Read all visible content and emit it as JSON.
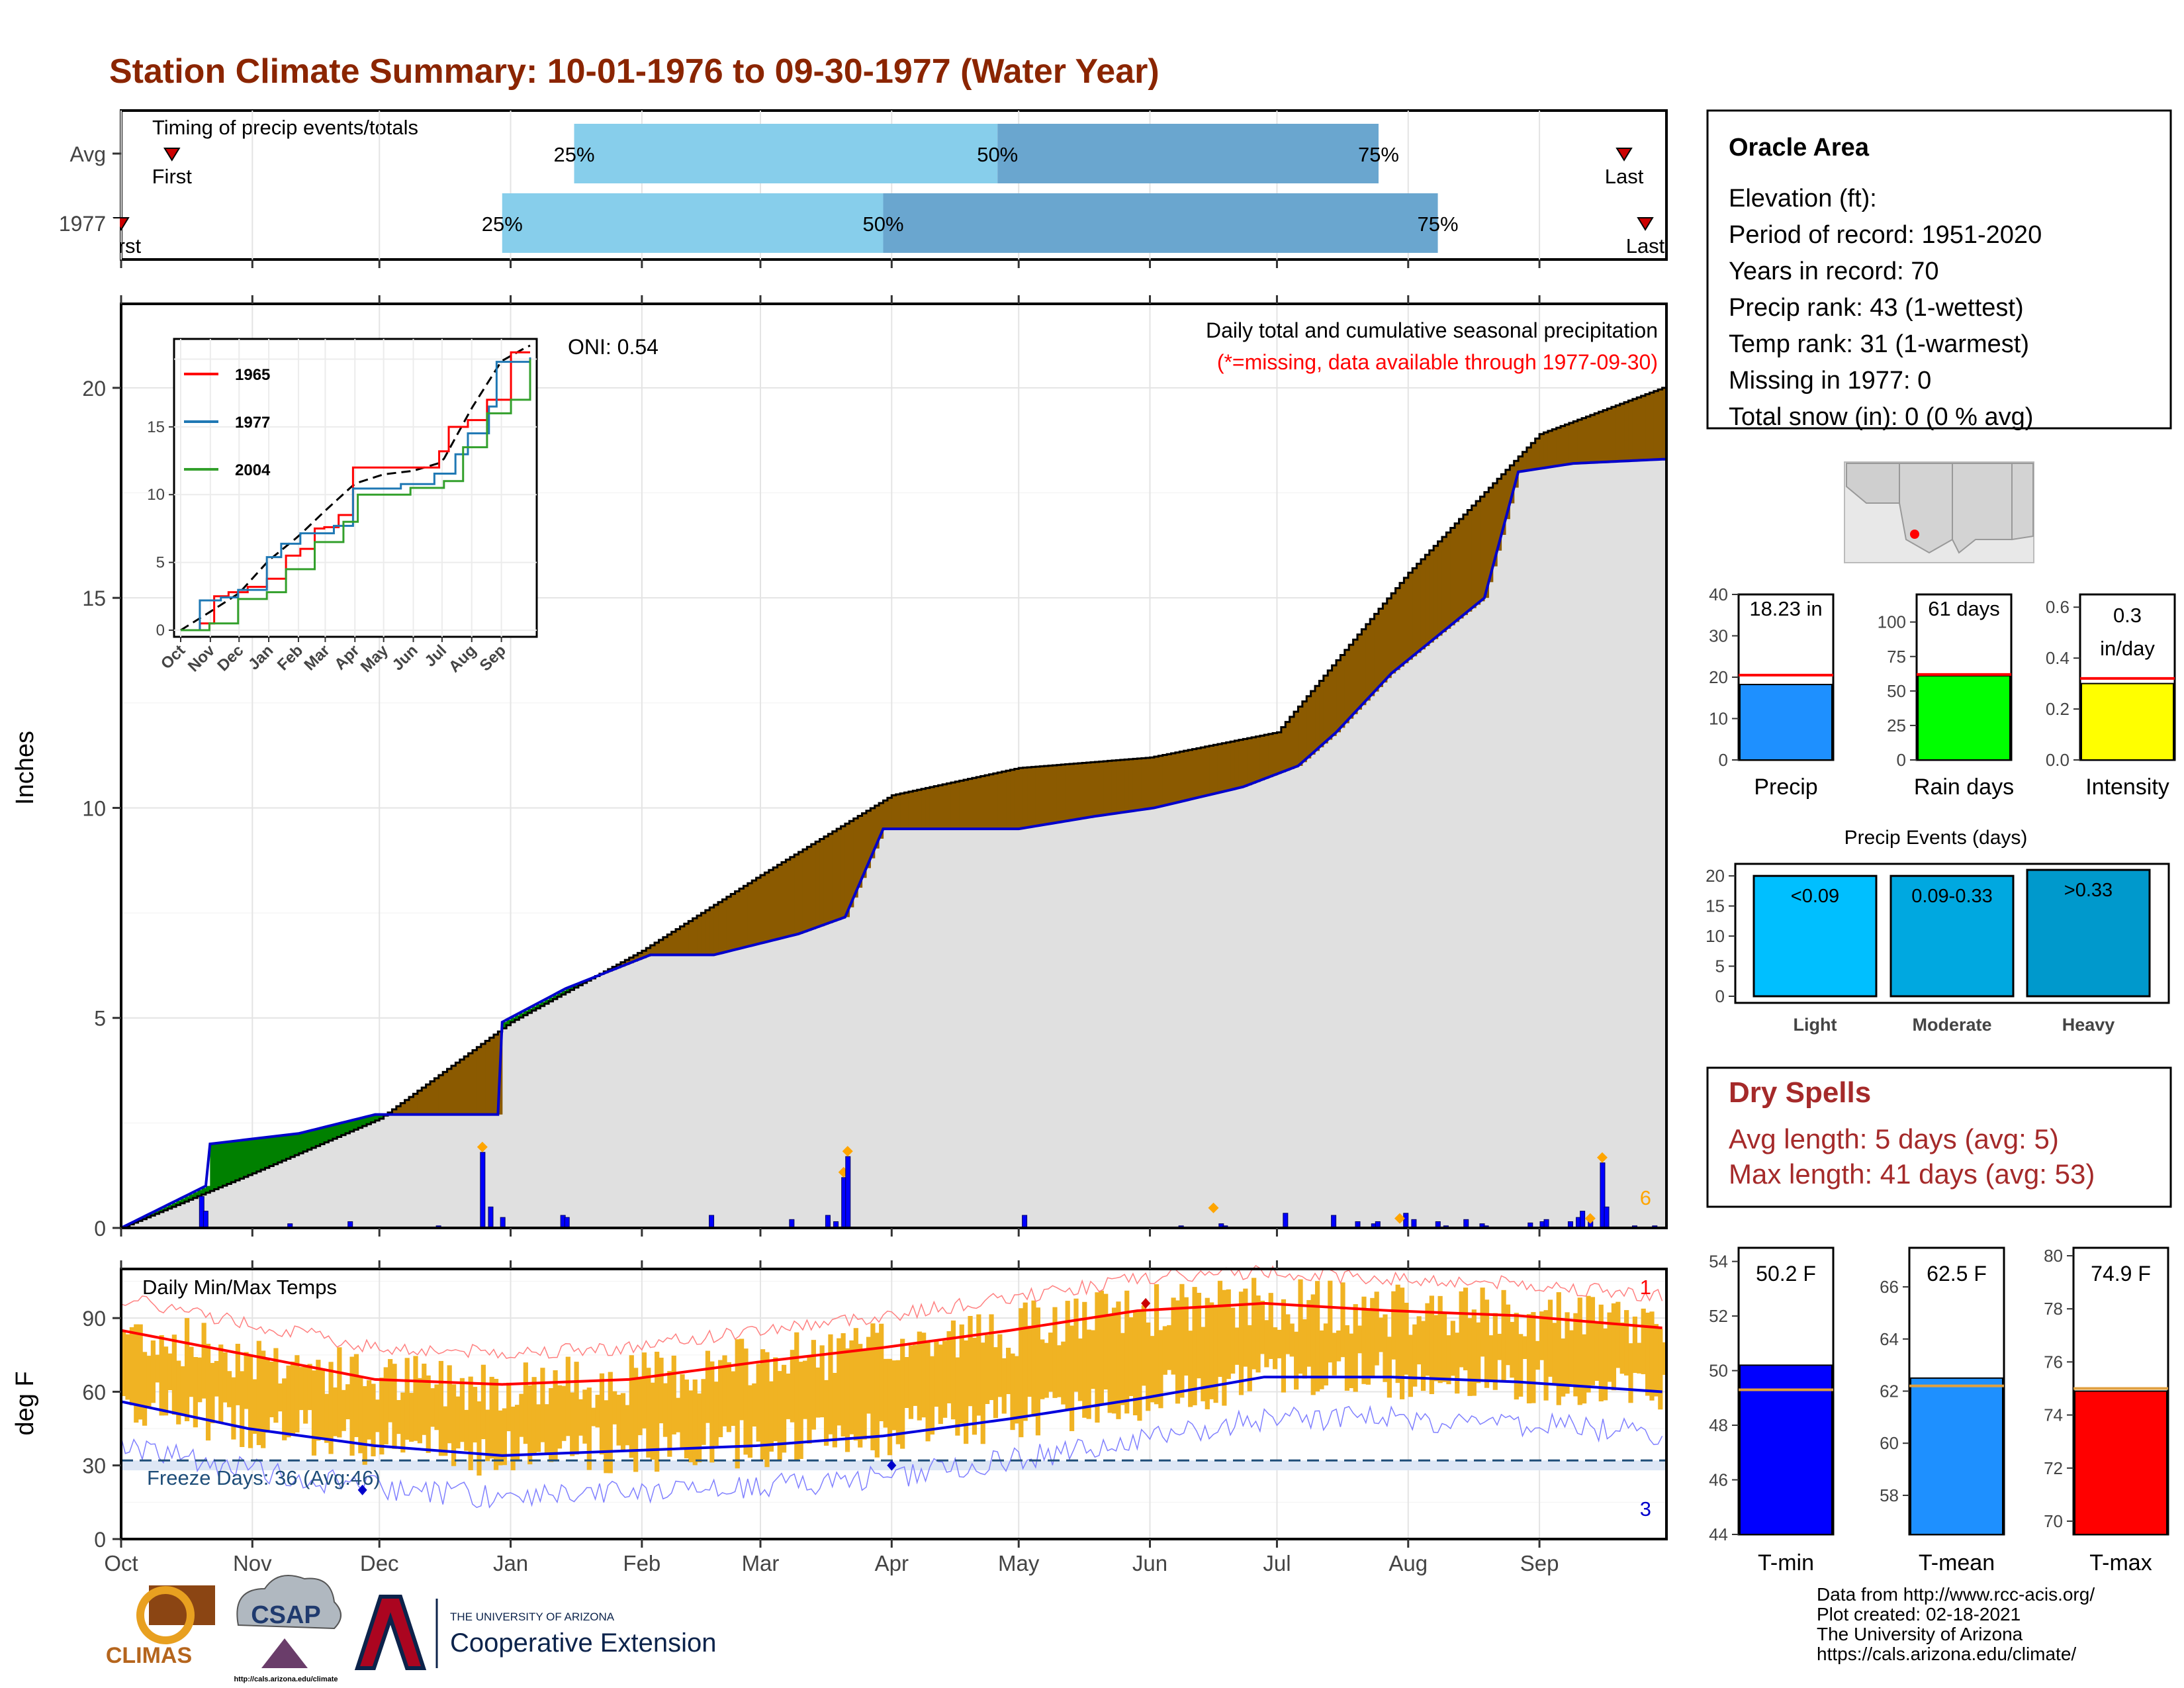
{
  "title": "Station Climate Summary: 10-01-1976 to 09-30-1977 (Water Year)",
  "months": [
    "Oct",
    "Nov",
    "Dec",
    "Jan",
    "Feb",
    "Mar",
    "Apr",
    "May",
    "Jun",
    "Jul",
    "Aug",
    "Sep"
  ],
  "timing": {
    "title": "Timing of precip events/totals",
    "rows": [
      {
        "label": "Avg",
        "first_label": "First",
        "last_label": "Last",
        "first_day": 12,
        "last_day": 355,
        "p25_day": 107,
        "p50_day": 207,
        "p75_day": 297,
        "q25": "25%",
        "q50": "50%",
        "q75": "75%"
      },
      {
        "label": "1977",
        "first_label": "First",
        "last_label": "Last",
        "first_day": 0,
        "last_day": 360,
        "p25_day": 90,
        "p50_day": 180,
        "p75_day": 311,
        "q25": "25%",
        "q50": "50%",
        "q75": "75%"
      }
    ]
  },
  "precip_panel": {
    "ylabel": "Inches",
    "yticks": [
      "0",
      "5",
      "10",
      "15",
      "20"
    ],
    "oni": "ONI: 0.54",
    "title": "Daily total and cumulative seasonal precipitation",
    "missing_note": "(*=missing, data available through 1977-09-30)",
    "extreme_count": "6"
  },
  "inset": {
    "yticks": [
      "0",
      "5",
      "10",
      "15"
    ],
    "xticks": [
      "Oct",
      "Nov",
      "Dec",
      "Jan",
      "Feb",
      "Mar",
      "Apr",
      "May",
      "Jun",
      "Jul",
      "Aug",
      "Sep"
    ],
    "legend": [
      "1965",
      "1977",
      "2004"
    ]
  },
  "temp_panel": {
    "ylabel": "deg F",
    "title": "Daily Min/Max Temps",
    "yticks": [
      "0",
      "30",
      "60",
      "90"
    ],
    "freeze_label": "Freeze Days: 36 (Avg:46)",
    "record_high_count": "1",
    "record_low_count": "3"
  },
  "station": {
    "name": "Oracle Area",
    "lines": [
      "Elevation (ft):",
      "Period of record: 1951-2020",
      "Years in record: 70",
      "Precip rank: 43 (1-wettest)",
      "Temp rank: 31 (1-warmest)",
      "Missing in 1977: 0",
      "Total snow (in): 0 (0 % avg)"
    ]
  },
  "mini_bars": [
    {
      "name": "Precip",
      "value_label": "18.23 in",
      "yticks": [
        "0",
        "10",
        "20",
        "30",
        "40"
      ],
      "max": 40,
      "value": 18.23,
      "avg": 20.5,
      "color": "#1e90ff"
    },
    {
      "name": "Rain days",
      "value_label": "61 days",
      "yticks": [
        "0",
        "25",
        "50",
        "75",
        "100"
      ],
      "max": 120,
      "value": 61,
      "avg": 62,
      "color": "#00ff00"
    },
    {
      "name": "Intensity",
      "value_label": "0.3 in/day",
      "value_line1": "0.3",
      "value_line2": "in/day",
      "yticks": [
        "0.0",
        "0.2",
        "0.4",
        "0.6"
      ],
      "max": 0.65,
      "value": 0.3,
      "avg": 0.32,
      "color": "#ffff00"
    }
  ],
  "precip_events": {
    "title": "Precip Events (days)",
    "yticks": [
      "0",
      "5",
      "10",
      "15",
      "20"
    ],
    "bars": [
      {
        "name": "Light",
        "range": "<0.09",
        "value": 20,
        "color": "#00bfff"
      },
      {
        "name": "Moderate",
        "range": "0.09-0.33",
        "value": 20,
        "color": "#00a8e0"
      },
      {
        "name": "Heavy",
        "range": ">0.33",
        "value": 21,
        "color": "#0099cc"
      }
    ]
  },
  "dry_spells": {
    "title": "Dry Spells",
    "avg_line": "Avg length: 5 days (avg: 5)",
    "max_line": "Max length: 41 days (avg: 53)"
  },
  "temp_bars": [
    {
      "name": "T-min",
      "value_label": "50.2 F",
      "yticks": [
        "44",
        "46",
        "48",
        "50",
        "52",
        "54"
      ],
      "ymin": 44,
      "ymax": 54.5,
      "value": 50.2,
      "avg": 49.3,
      "color": "#0000ff"
    },
    {
      "name": "T-mean",
      "value_label": "62.5 F",
      "yticks": [
        "58",
        "60",
        "62",
        "64",
        "66"
      ],
      "ymin": 56.5,
      "ymax": 67.5,
      "value": 62.5,
      "avg": 62.2,
      "color": "#1e90ff"
    },
    {
      "name": "T-max",
      "value_label": "74.9 F",
      "yticks": [
        "70",
        "72",
        "74",
        "76",
        "78",
        "80"
      ],
      "ymin": 69.5,
      "ymax": 80.3,
      "value": 74.9,
      "avg": 75.0,
      "color": "#ff0000"
    }
  ],
  "footer": {
    "credits": [
      "Data from http://www.rcc-acis.org/",
      "Plot created: 02-18-2021",
      "The University of Arizona",
      "https://cals.arizona.edu/climate/"
    ],
    "climas": "CLIMAS",
    "csap": "CSAP",
    "csap_url": "http://cals.arizona.edu/climate",
    "ua_small": "THE UNIVERSITY OF ARIZONA",
    "ua_big": "Cooperative Extension"
  },
  "chart_data": {
    "type": "area",
    "title": "Daily total and cumulative seasonal precipitation",
    "ylabel": "Inches",
    "ylim": [
      0,
      22
    ],
    "series": [
      {
        "name": "avg cumulative",
        "x_day": [
          0,
          31,
          61,
          92,
          123,
          151,
          182,
          212,
          243,
          273,
          304,
          335,
          364
        ],
        "values": [
          0,
          1.3,
          2.6,
          4.9,
          6.6,
          8.4,
          10.3,
          10.95,
          11.2,
          11.8,
          15.6,
          18.9,
          20.0
        ]
      },
      {
        "name": "1977",
        "x_day": [
          0,
          20,
          21,
          42,
          60,
          89,
          90,
          105,
          125,
          140,
          160,
          171,
          180,
          190,
          212,
          230,
          244,
          265,
          278,
          287,
          300,
          322,
          330,
          343,
          364
        ],
        "values": [
          0,
          1.0,
          2.0,
          2.25,
          2.7,
          2.7,
          4.9,
          5.7,
          6.5,
          6.5,
          7.0,
          7.4,
          9.5,
          9.5,
          9.5,
          9.8,
          10.0,
          10.5,
          11.0,
          11.8,
          13.2,
          15.0,
          18.0,
          18.2,
          18.3
        ]
      }
    ],
    "daily_precip": [
      [
        20,
        0.75
      ],
      [
        21,
        0.4
      ],
      [
        42,
        0.1
      ],
      [
        57,
        0.15
      ],
      [
        79,
        0.05
      ],
      [
        90,
        1.8
      ],
      [
        92,
        0.5
      ],
      [
        95,
        0.25
      ],
      [
        110,
        0.3
      ],
      [
        111,
        0.25
      ],
      [
        147,
        0.3
      ],
      [
        167,
        0.2
      ],
      [
        176,
        0.3
      ],
      [
        178,
        0.15
      ],
      [
        180,
        1.2
      ],
      [
        181,
        1.7
      ],
      [
        225,
        0.3
      ],
      [
        264,
        0.05
      ],
      [
        274,
        0.1
      ],
      [
        275,
        0.05
      ],
      [
        290,
        0.35
      ],
      [
        302,
        0.3
      ],
      [
        308,
        0.15
      ],
      [
        312,
        0.1
      ],
      [
        313,
        0.15
      ],
      [
        320,
        0.35
      ],
      [
        322,
        0.2
      ],
      [
        328,
        0.15
      ],
      [
        330,
        0.05
      ],
      [
        335,
        0.2
      ],
      [
        339,
        0.1
      ],
      [
        340,
        0.05
      ],
      [
        351,
        0.12
      ],
      [
        354,
        0.15
      ],
      [
        355,
        0.2
      ],
      [
        361,
        0.15
      ],
      [
        363,
        0.25
      ],
      [
        364,
        0.4
      ],
      [
        366,
        0.15
      ],
      [
        369,
        1.55
      ],
      [
        370,
        0.5
      ],
      [
        377,
        0.05
      ],
      [
        382,
        0.05
      ]
    ],
    "temps": {
      "ylim": [
        0,
        110
      ],
      "avg_max": [
        [
          0,
          85
        ],
        [
          30,
          75
        ],
        [
          60,
          65
        ],
        [
          90,
          63
        ],
        [
          120,
          65
        ],
        [
          150,
          72
        ],
        [
          180,
          78
        ],
        [
          210,
          85
        ],
        [
          240,
          93
        ],
        [
          270,
          96
        ],
        [
          300,
          93
        ],
        [
          330,
          91
        ],
        [
          364,
          86
        ]
      ],
      "avg_min": [
        [
          0,
          56
        ],
        [
          30,
          45
        ],
        [
          60,
          38
        ],
        [
          90,
          34
        ],
        [
          120,
          36
        ],
        [
          150,
          38
        ],
        [
          180,
          42
        ],
        [
          210,
          49
        ],
        [
          240,
          57
        ],
        [
          270,
          66
        ],
        [
          300,
          66
        ],
        [
          330,
          64
        ],
        [
          364,
          60
        ]
      ],
      "freeze_line": 32
    }
  }
}
